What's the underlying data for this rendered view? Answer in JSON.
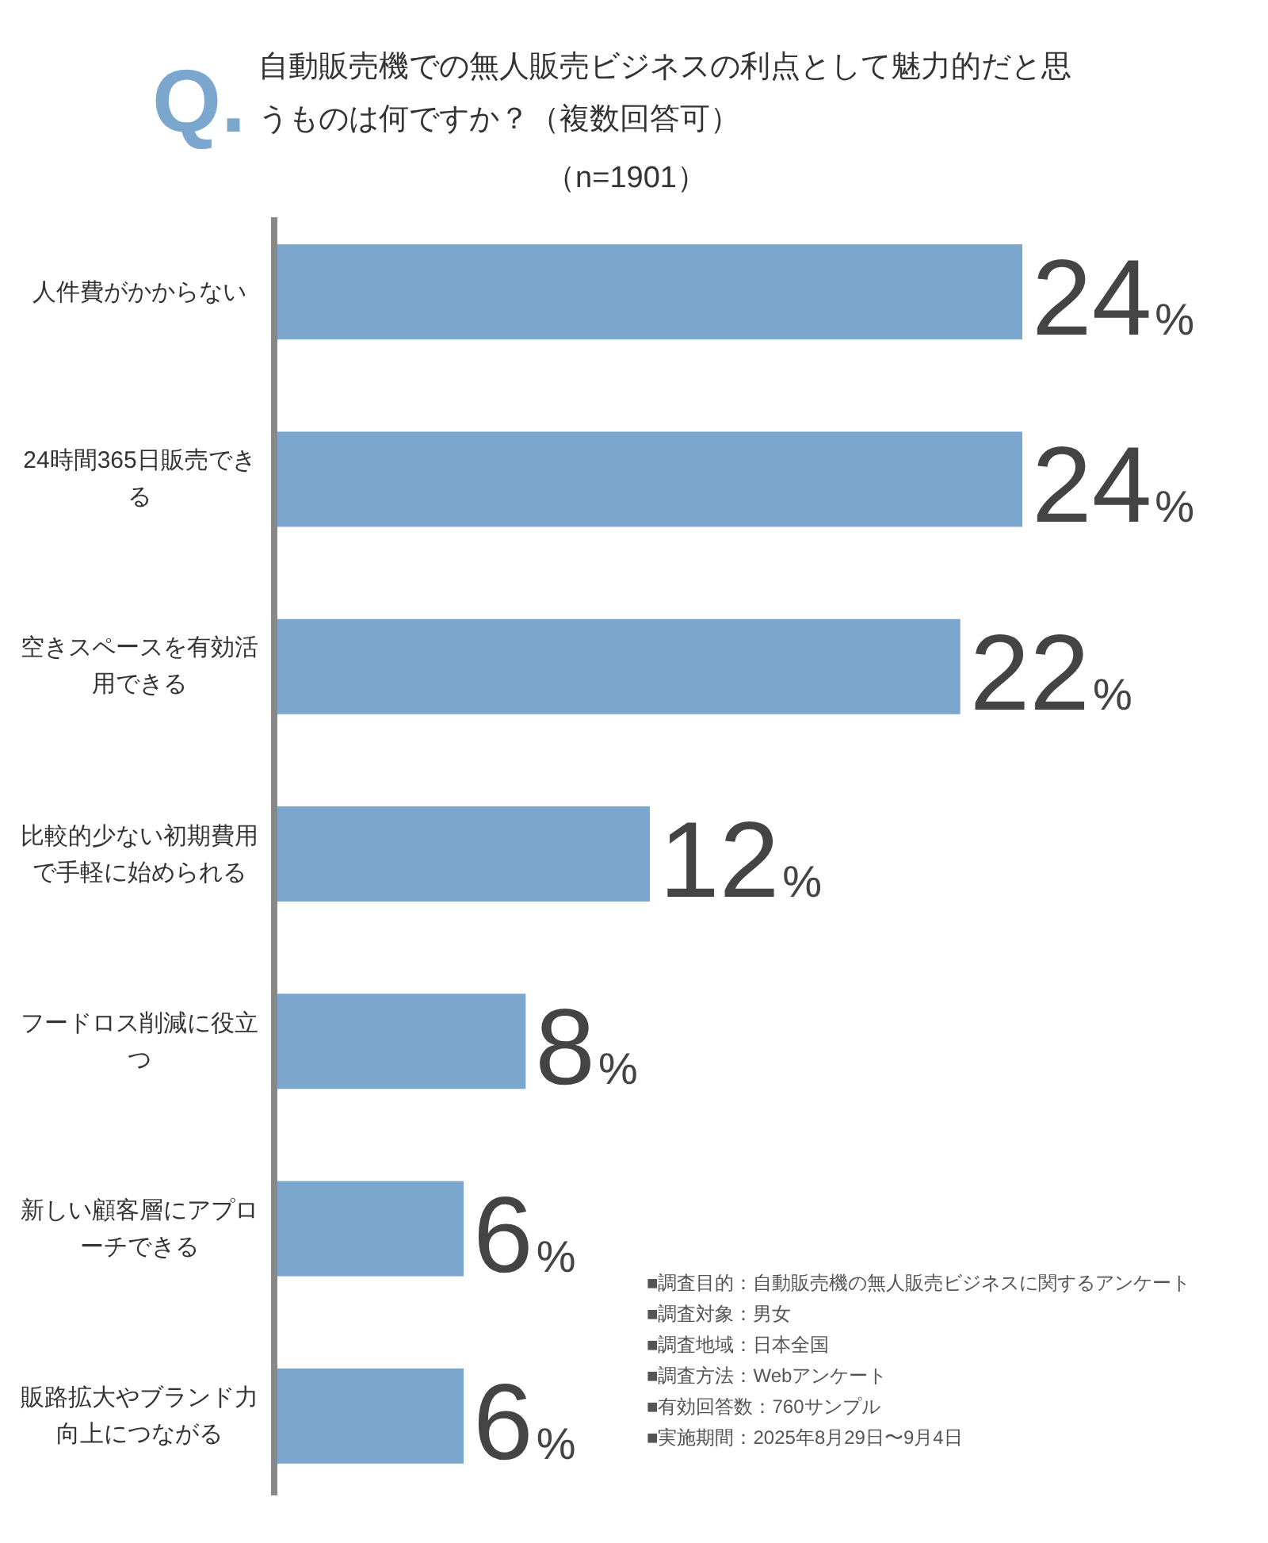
{
  "chart_data": {
    "type": "bar",
    "orientation": "horizontal",
    "title": "Q.自動販売機での無人販売ビジネスの利点として魅力的だと思うものは何ですか？（複数回答可）",
    "subtitle": "（n=1901）",
    "categories": [
      "人件費がかからない",
      "24時間365日販売できる",
      "空きスペースを有効活用できる",
      "比較的少ない初期費用で手軽に始められる",
      "フードロス削減に役立つ",
      "新しい顧客層にアプローチできる",
      "販路拡大やブランド力向上につながる"
    ],
    "values": [
      24,
      24,
      22,
      12,
      8,
      6,
      6
    ],
    "value_labels": [
      "24%",
      "24%",
      "22%",
      "12%",
      "8%",
      "6%",
      "6%"
    ],
    "color": "#7ba7cf",
    "annotations": [
      "■調査目的：自動販売機の無人販売ビジネスに関するアンケート",
      "■調査対象：男女",
      "■調査地域：日本全国",
      "■調査方法：Webアンケート",
      "■有効回答数：760サンプル",
      "■実施期間：2025年8月29日〜9月4日"
    ]
  }
}
